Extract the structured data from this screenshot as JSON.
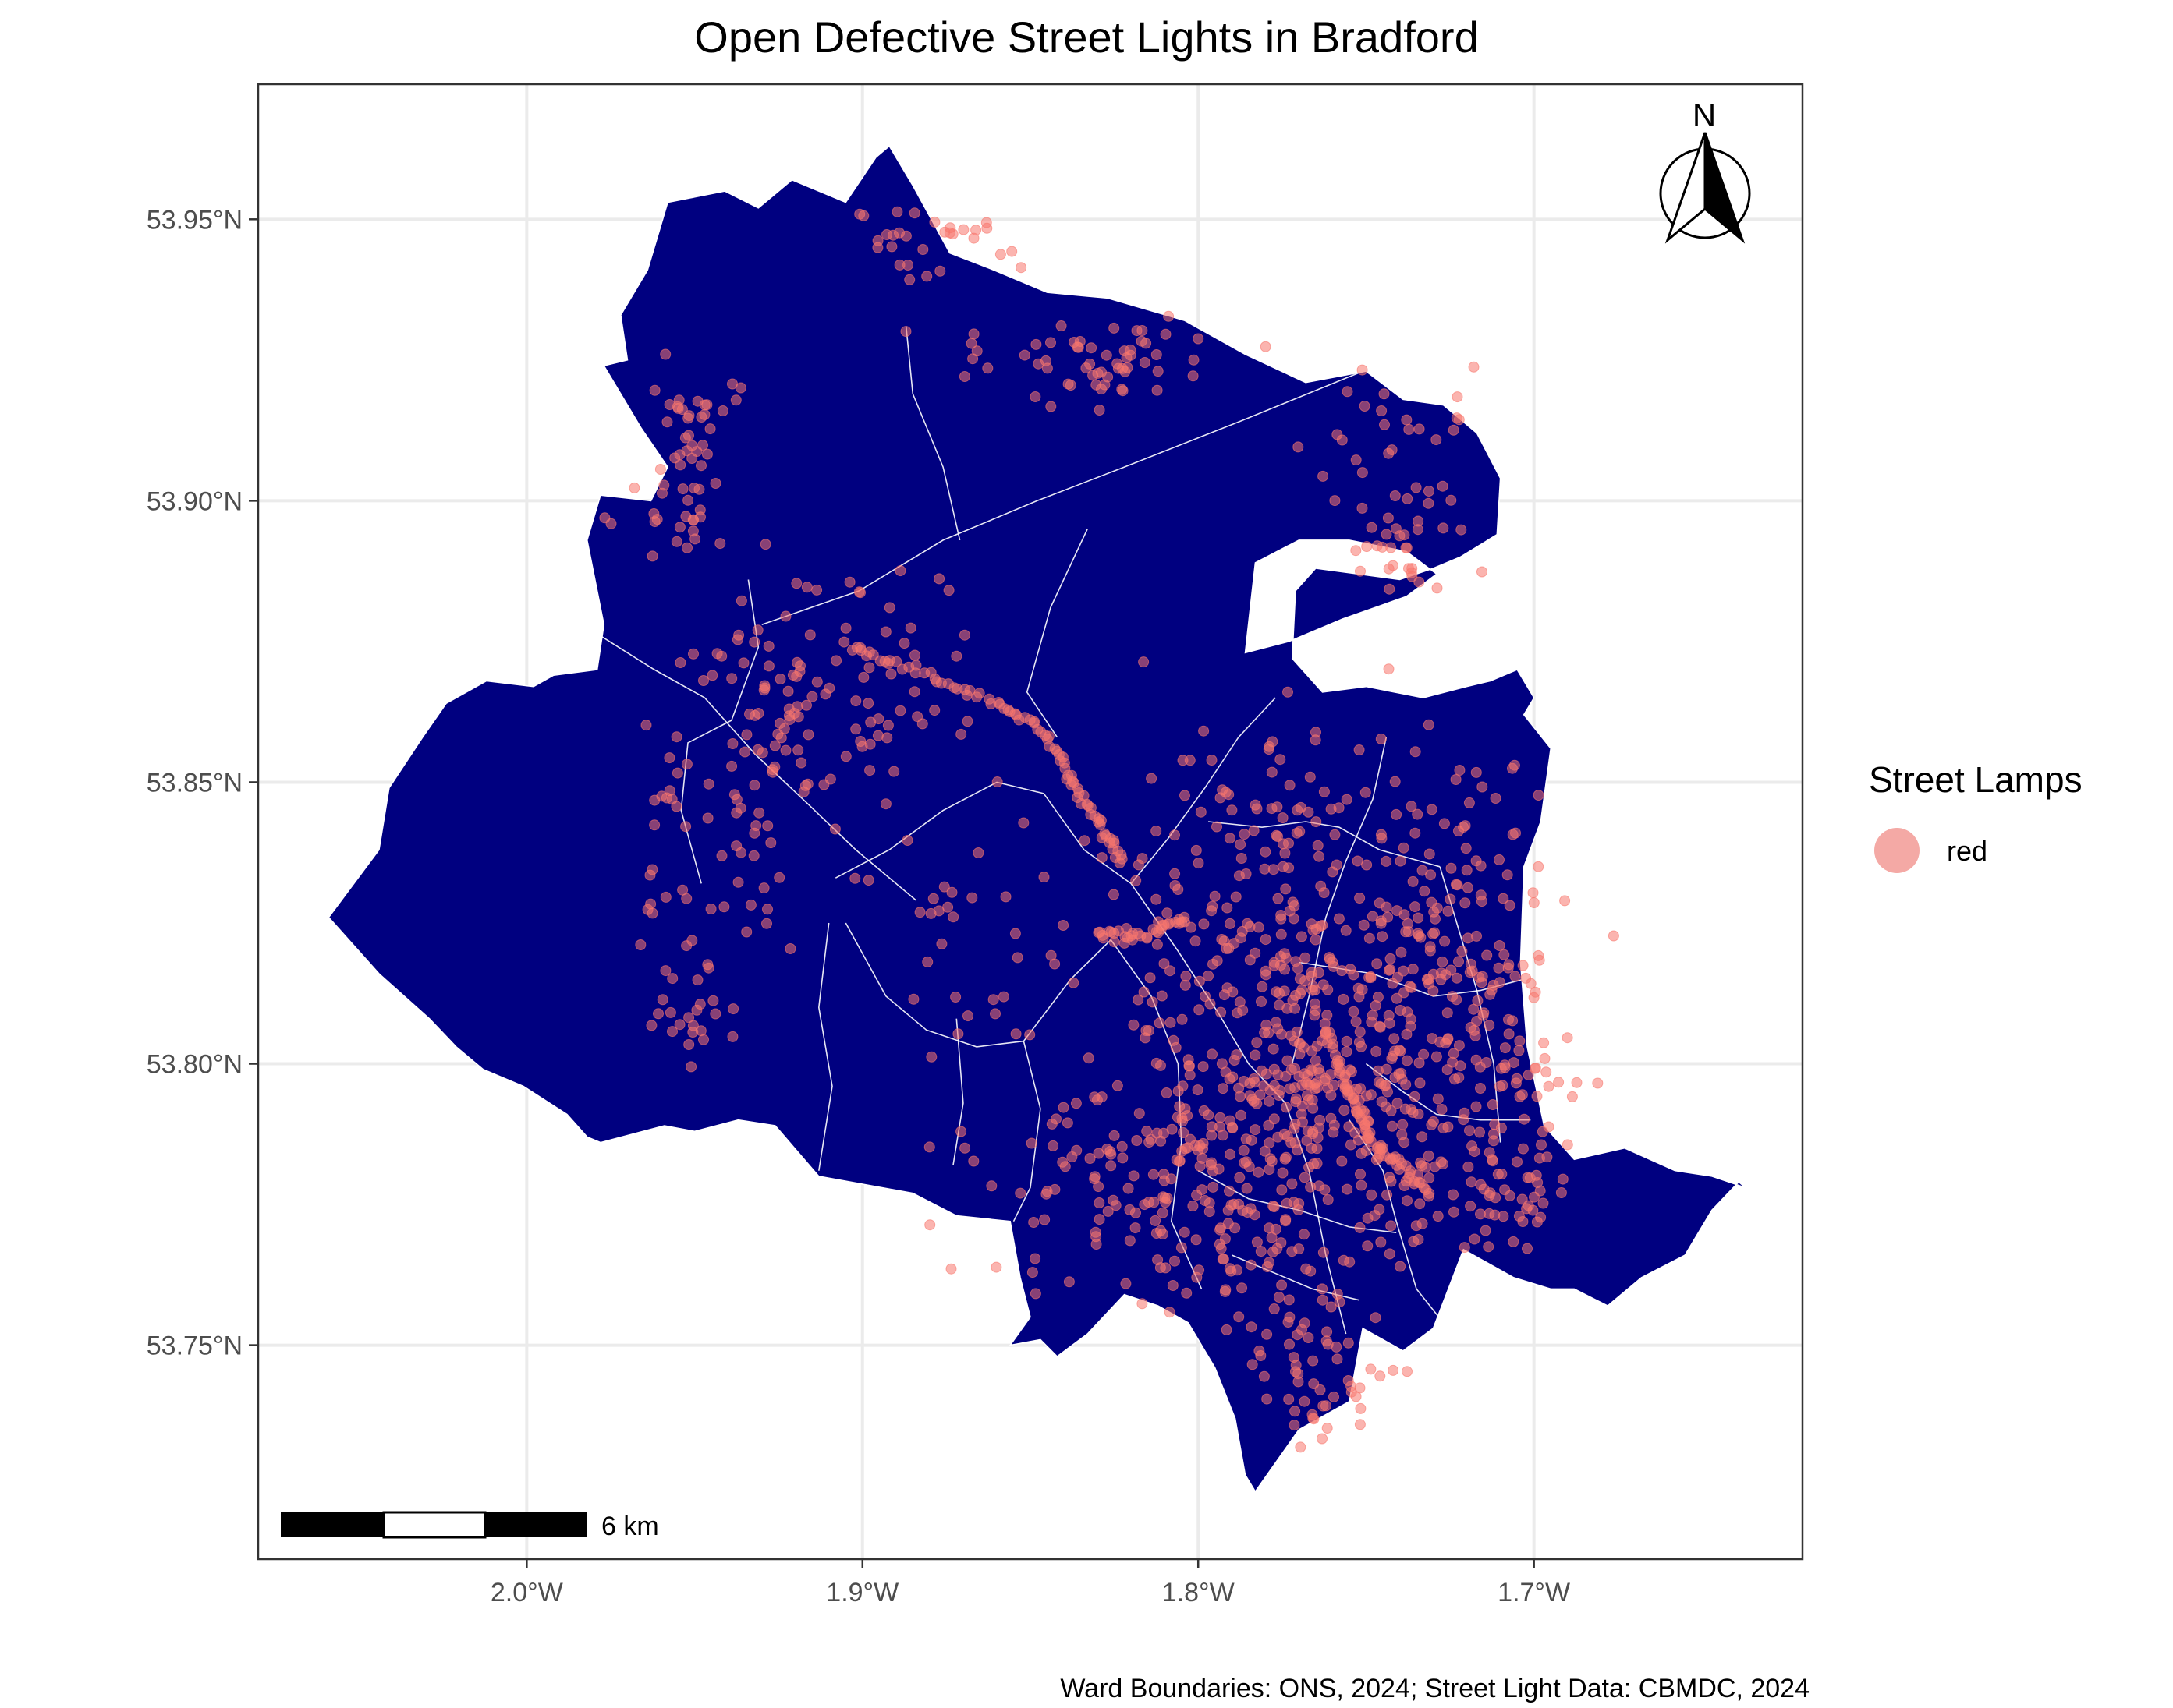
{
  "title": "Open Defective Street Lights in Bradford",
  "caption": "Ward Boundaries: ONS, 2024; Street Light Data: CBMDC, 2024",
  "legend": {
    "title": "Street Lamps",
    "items": [
      {
        "label": "red",
        "color": "#f8766d"
      }
    ]
  },
  "north_arrow": {
    "label": "N"
  },
  "scale_bar": {
    "label": "6 km"
  },
  "axes": {
    "x_ticks": [
      {
        "value": -2.0,
        "label": "2.0°W"
      },
      {
        "value": -1.9,
        "label": "1.9°W"
      },
      {
        "value": -1.8,
        "label": "1.8°W"
      },
      {
        "value": -1.7,
        "label": "1.7°W"
      }
    ],
    "y_ticks": [
      {
        "value": 53.95,
        "label": "53.95°N"
      },
      {
        "value": 53.9,
        "label": "53.90°N"
      },
      {
        "value": 53.85,
        "label": "53.85°N"
      },
      {
        "value": 53.8,
        "label": "53.80°N"
      },
      {
        "value": 53.75,
        "label": "53.75°N"
      }
    ]
  },
  "chart_data": {
    "type": "scatter",
    "title": "Open Defective Street Lights in Bradford",
    "xlabel": "",
    "ylabel": "",
    "xlim": [
      -2.08,
      -1.62
    ],
    "ylim": [
      53.712,
      53.974
    ],
    "grid": true,
    "legend_position": "right",
    "fill_color": "#000080",
    "boundary_color": "#ffffff",
    "point_color": "#f8766d",
    "boundary": [
      [
        -2.059,
        53.826
      ],
      [
        -2.044,
        53.816
      ],
      [
        -2.029,
        53.808
      ],
      [
        -2.021,
        53.803
      ],
      [
        -2.013,
        53.799
      ],
      [
        -2.001,
        53.796
      ],
      [
        -1.988,
        53.791
      ],
      [
        -1.982,
        53.787
      ],
      [
        -1.978,
        53.786
      ],
      [
        -1.959,
        53.789
      ],
      [
        -1.95,
        53.788
      ],
      [
        -1.937,
        53.79
      ],
      [
        -1.926,
        53.789
      ],
      [
        -1.913,
        53.78
      ],
      [
        -1.885,
        53.777
      ],
      [
        -1.872,
        53.773
      ],
      [
        -1.856,
        53.772
      ],
      [
        -1.853,
        53.762
      ],
      [
        -1.85,
        53.755
      ],
      [
        -1.856,
        53.75
      ],
      [
        -1.847,
        53.751
      ],
      [
        -1.842,
        53.748
      ],
      [
        -1.833,
        53.752
      ],
      [
        -1.822,
        53.759
      ],
      [
        -1.812,
        53.757
      ],
      [
        -1.803,
        53.754
      ],
      [
        -1.795,
        53.746
      ],
      [
        -1.789,
        53.737
      ],
      [
        -1.786,
        53.727
      ],
      [
        -1.783,
        53.724
      ],
      [
        -1.77,
        53.735
      ],
      [
        -1.755,
        53.74
      ],
      [
        -1.751,
        53.753
      ],
      [
        -1.739,
        53.749
      ],
      [
        -1.73,
        53.753
      ],
      [
        -1.721,
        53.767
      ],
      [
        -1.706,
        53.762
      ],
      [
        -1.695,
        53.76
      ],
      [
        -1.688,
        53.76
      ],
      [
        -1.678,
        53.757
      ],
      [
        -1.668,
        53.762
      ],
      [
        -1.655,
        53.766
      ],
      [
        -1.647,
        53.774
      ],
      [
        -1.639,
        53.779
      ],
      [
        -1.637,
        53.778
      ],
      [
        -1.647,
        53.78
      ],
      [
        -1.658,
        53.781
      ],
      [
        -1.673,
        53.785
      ],
      [
        -1.688,
        53.783
      ],
      [
        -1.697,
        53.789
      ],
      [
        -1.702,
        53.803
      ],
      [
        -1.704,
        53.818
      ],
      [
        -1.703,
        53.835
      ],
      [
        -1.698,
        53.843
      ],
      [
        -1.695,
        53.856
      ],
      [
        -1.703,
        53.862
      ],
      [
        -1.7,
        53.865
      ],
      [
        -1.705,
        53.87
      ],
      [
        -1.713,
        53.868
      ],
      [
        -1.72,
        53.867
      ],
      [
        -1.733,
        53.865
      ],
      [
        -1.75,
        53.867
      ],
      [
        -1.763,
        53.866
      ],
      [
        -1.772,
        53.872
      ],
      [
        -1.771,
        53.884
      ],
      [
        -1.765,
        53.888
      ],
      [
        -1.74,
        53.886
      ],
      [
        -1.73,
        53.888
      ],
      [
        -1.722,
        53.89
      ],
      [
        -1.711,
        53.894
      ],
      [
        -1.71,
        53.904
      ],
      [
        -1.717,
        53.912
      ],
      [
        -1.727,
        53.917
      ],
      [
        -1.739,
        53.918
      ],
      [
        -1.75,
        53.923
      ],
      [
        -1.768,
        53.921
      ],
      [
        -1.786,
        53.926
      ],
      [
        -1.804,
        53.932
      ],
      [
        -1.827,
        53.936
      ],
      [
        -1.845,
        53.937
      ],
      [
        -1.861,
        53.941
      ],
      [
        -1.874,
        53.944
      ],
      [
        -1.885,
        53.956
      ],
      [
        -1.892,
        53.963
      ],
      [
        -1.896,
        53.961
      ],
      [
        -1.905,
        53.953
      ],
      [
        -1.921,
        53.957
      ],
      [
        -1.931,
        53.952
      ],
      [
        -1.941,
        53.955
      ],
      [
        -1.958,
        53.953
      ],
      [
        -1.964,
        53.941
      ],
      [
        -1.972,
        53.933
      ],
      [
        -1.97,
        53.925
      ],
      [
        -1.977,
        53.924
      ],
      [
        -1.966,
        53.913
      ],
      [
        -1.958,
        53.906
      ],
      [
        -1.963,
        53.9
      ],
      [
        -1.978,
        53.901
      ],
      [
        -1.982,
        53.893
      ],
      [
        -1.977,
        53.878
      ],
      [
        -1.979,
        53.87
      ],
      [
        -1.992,
        53.869
      ],
      [
        -1.998,
        53.867
      ],
      [
        -2.012,
        53.868
      ],
      [
        -2.024,
        53.864
      ],
      [
        -2.031,
        53.858
      ],
      [
        -2.041,
        53.849
      ],
      [
        -2.044,
        53.838
      ],
      [
        -2.059,
        53.826
      ]
    ],
    "boundary_hole": [
      [
        -1.786,
        53.873
      ],
      [
        -1.783,
        53.889
      ],
      [
        -1.77,
        53.893
      ],
      [
        -1.755,
        53.893
      ],
      [
        -1.738,
        53.891
      ],
      [
        -1.729,
        53.887
      ],
      [
        -1.738,
        53.883
      ],
      [
        -1.757,
        53.879
      ],
      [
        -1.773,
        53.875
      ],
      [
        -1.786,
        53.873
      ]
    ],
    "wards": [
      [
        [
          -1.93,
          53.878
        ],
        [
          -1.901,
          53.884
        ],
        [
          -1.876,
          53.893
        ],
        [
          -1.848,
          53.9
        ],
        [
          -1.822,
          53.906
        ],
        [
          -1.788,
          53.914
        ],
        [
          -1.751,
          53.923
        ]
      ],
      [
        [
          -1.871,
          53.893
        ],
        [
          -1.876,
          53.906
        ],
        [
          -1.885,
          53.919
        ],
        [
          -1.887,
          53.931
        ]
      ],
      [
        [
          -1.833,
          53.895
        ],
        [
          -1.844,
          53.881
        ],
        [
          -1.851,
          53.866
        ],
        [
          -1.842,
          53.858
        ]
      ],
      [
        [
          -1.978,
          53.876
        ],
        [
          -1.962,
          53.87
        ],
        [
          -1.947,
          53.865
        ],
        [
          -1.932,
          53.855
        ],
        [
          -1.916,
          53.846
        ],
        [
          -1.902,
          53.838
        ],
        [
          -1.884,
          53.829
        ]
      ],
      [
        [
          -1.934,
          53.886
        ],
        [
          -1.931,
          53.874
        ],
        [
          -1.939,
          53.861
        ],
        [
          -1.952,
          53.857
        ],
        [
          -1.954,
          53.845
        ],
        [
          -1.948,
          53.832
        ]
      ],
      [
        [
          -1.908,
          53.833
        ],
        [
          -1.892,
          53.838
        ],
        [
          -1.876,
          53.845
        ],
        [
          -1.86,
          53.85
        ],
        [
          -1.846,
          53.848
        ],
        [
          -1.834,
          53.838
        ],
        [
          -1.82,
          53.832
        ]
      ],
      [
        [
          -1.905,
          53.825
        ],
        [
          -1.893,
          53.812
        ],
        [
          -1.881,
          53.806
        ],
        [
          -1.866,
          53.803
        ],
        [
          -1.852,
          53.804
        ],
        [
          -1.838,
          53.815
        ],
        [
          -1.826,
          53.822
        ]
      ],
      [
        [
          -1.91,
          53.825
        ],
        [
          -1.913,
          53.81
        ],
        [
          -1.909,
          53.796
        ],
        [
          -1.913,
          53.781
        ]
      ],
      [
        [
          -1.872,
          53.808
        ],
        [
          -1.87,
          53.793
        ],
        [
          -1.873,
          53.782
        ]
      ],
      [
        [
          -1.852,
          53.804
        ],
        [
          -1.847,
          53.792
        ],
        [
          -1.85,
          53.778
        ],
        [
          -1.855,
          53.772
        ]
      ],
      [
        [
          -1.82,
          53.832
        ],
        [
          -1.806,
          53.82
        ],
        [
          -1.794,
          53.809
        ],
        [
          -1.785,
          53.8
        ],
        [
          -1.774,
          53.793
        ],
        [
          -1.767,
          53.781
        ],
        [
          -1.762,
          53.766
        ],
        [
          -1.756,
          53.752
        ]
      ],
      [
        [
          -1.826,
          53.822
        ],
        [
          -1.814,
          53.812
        ],
        [
          -1.806,
          53.8
        ],
        [
          -1.805,
          53.786
        ],
        [
          -1.808,
          53.772
        ],
        [
          -1.799,
          53.76
        ]
      ],
      [
        [
          -1.82,
          53.832
        ],
        [
          -1.809,
          53.84
        ],
        [
          -1.798,
          53.849
        ],
        [
          -1.788,
          53.858
        ],
        [
          -1.777,
          53.865
        ]
      ],
      [
        [
          -1.797,
          53.843
        ],
        [
          -1.781,
          53.842
        ],
        [
          -1.768,
          53.843
        ],
        [
          -1.758,
          53.842
        ],
        [
          -1.746,
          53.838
        ],
        [
          -1.728,
          53.835
        ]
      ],
      [
        [
          -1.744,
          53.858
        ],
        [
          -1.748,
          53.847
        ],
        [
          -1.756,
          53.836
        ],
        [
          -1.762,
          53.826
        ],
        [
          -1.767,
          53.812
        ],
        [
          -1.772,
          53.8
        ]
      ],
      [
        [
          -1.77,
          53.818
        ],
        [
          -1.748,
          53.816
        ],
        [
          -1.73,
          53.812
        ],
        [
          -1.716,
          53.813
        ],
        [
          -1.703,
          53.815
        ]
      ],
      [
        [
          -1.75,
          53.8
        ],
        [
          -1.739,
          53.795
        ],
        [
          -1.729,
          53.791
        ],
        [
          -1.716,
          53.79
        ],
        [
          -1.701,
          53.79
        ]
      ],
      [
        [
          -1.755,
          53.79
        ],
        [
          -1.745,
          53.781
        ],
        [
          -1.741,
          53.772
        ],
        [
          -1.735,
          53.76
        ],
        [
          -1.727,
          53.754
        ]
      ],
      [
        [
          -1.8,
          53.781
        ],
        [
          -1.785,
          53.776
        ],
        [
          -1.77,
          53.774
        ],
        [
          -1.755,
          53.771
        ],
        [
          -1.741,
          53.77
        ]
      ],
      [
        [
          -1.79,
          53.766
        ],
        [
          -1.778,
          53.763
        ],
        [
          -1.766,
          53.76
        ],
        [
          -1.752,
          53.758
        ]
      ],
      [
        [
          -1.728,
          53.835
        ],
        [
          -1.722,
          53.823
        ],
        [
          -1.717,
          53.813
        ],
        [
          -1.712,
          53.8
        ],
        [
          -1.71,
          53.786
        ]
      ]
    ],
    "points_clusters": [
      {
        "lon": -1.88,
        "lat": 53.946,
        "n": 30,
        "spread_lon": 0.012,
        "spread_lat": 0.003
      },
      {
        "lon": -1.83,
        "lat": 53.925,
        "n": 60,
        "spread_lon": 0.022,
        "spread_lat": 0.004
      },
      {
        "lon": -1.95,
        "lat": 53.914,
        "n": 35,
        "spread_lon": 0.007,
        "spread_lat": 0.006
      },
      {
        "lon": -1.96,
        "lat": 53.898,
        "n": 20,
        "spread_lon": 0.009,
        "spread_lat": 0.005
      },
      {
        "lon": -1.74,
        "lat": 53.907,
        "n": 40,
        "spread_lon": 0.014,
        "spread_lat": 0.01
      },
      {
        "lon": -1.743,
        "lat": 53.891,
        "n": 20,
        "spread_lon": 0.006,
        "spread_lat": 0.003
      },
      {
        "lon": -1.915,
        "lat": 53.866,
        "n": 120,
        "spread_lon": 0.022,
        "spread_lat": 0.012
      },
      {
        "lon": -1.945,
        "lat": 53.835,
        "n": 50,
        "spread_lon": 0.012,
        "spread_lat": 0.012
      },
      {
        "lon": -1.95,
        "lat": 53.809,
        "n": 20,
        "spread_lon": 0.008,
        "spread_lat": 0.004
      },
      {
        "lon": -1.86,
        "lat": 53.822,
        "n": 40,
        "spread_lon": 0.02,
        "spread_lat": 0.015
      },
      {
        "lon": -1.77,
        "lat": 53.83,
        "n": 220,
        "spread_lon": 0.028,
        "spread_lat": 0.016
      },
      {
        "lon": -1.76,
        "lat": 53.798,
        "n": 350,
        "spread_lon": 0.03,
        "spread_lat": 0.014
      },
      {
        "lon": -1.8,
        "lat": 53.775,
        "n": 220,
        "spread_lon": 0.03,
        "spread_lat": 0.011
      },
      {
        "lon": -1.765,
        "lat": 53.745,
        "n": 50,
        "spread_lon": 0.01,
        "spread_lat": 0.007
      },
      {
        "lon": -1.72,
        "lat": 53.812,
        "n": 120,
        "spread_lon": 0.014,
        "spread_lat": 0.02
      },
      {
        "lon": -1.71,
        "lat": 53.778,
        "n": 40,
        "spread_lon": 0.008,
        "spread_lat": 0.006
      }
    ],
    "point_lines": [
      [
        [
          -1.903,
          53.874
        ],
        [
          -1.88,
          53.869
        ],
        [
          -1.86,
          53.864
        ],
        [
          -1.845,
          53.859
        ],
        [
          -1.838,
          53.85
        ],
        [
          -1.83,
          53.843
        ],
        [
          -1.822,
          53.835
        ]
      ],
      [
        [
          -1.762,
          53.807
        ],
        [
          -1.757,
          53.798
        ],
        [
          -1.752,
          53.792
        ],
        [
          -1.748,
          53.786
        ],
        [
          -1.74,
          53.782
        ],
        [
          -1.73,
          53.776
        ]
      ],
      [
        [
          -1.83,
          53.823
        ],
        [
          -1.815,
          53.823
        ],
        [
          -1.803,
          53.826
        ]
      ]
    ]
  }
}
